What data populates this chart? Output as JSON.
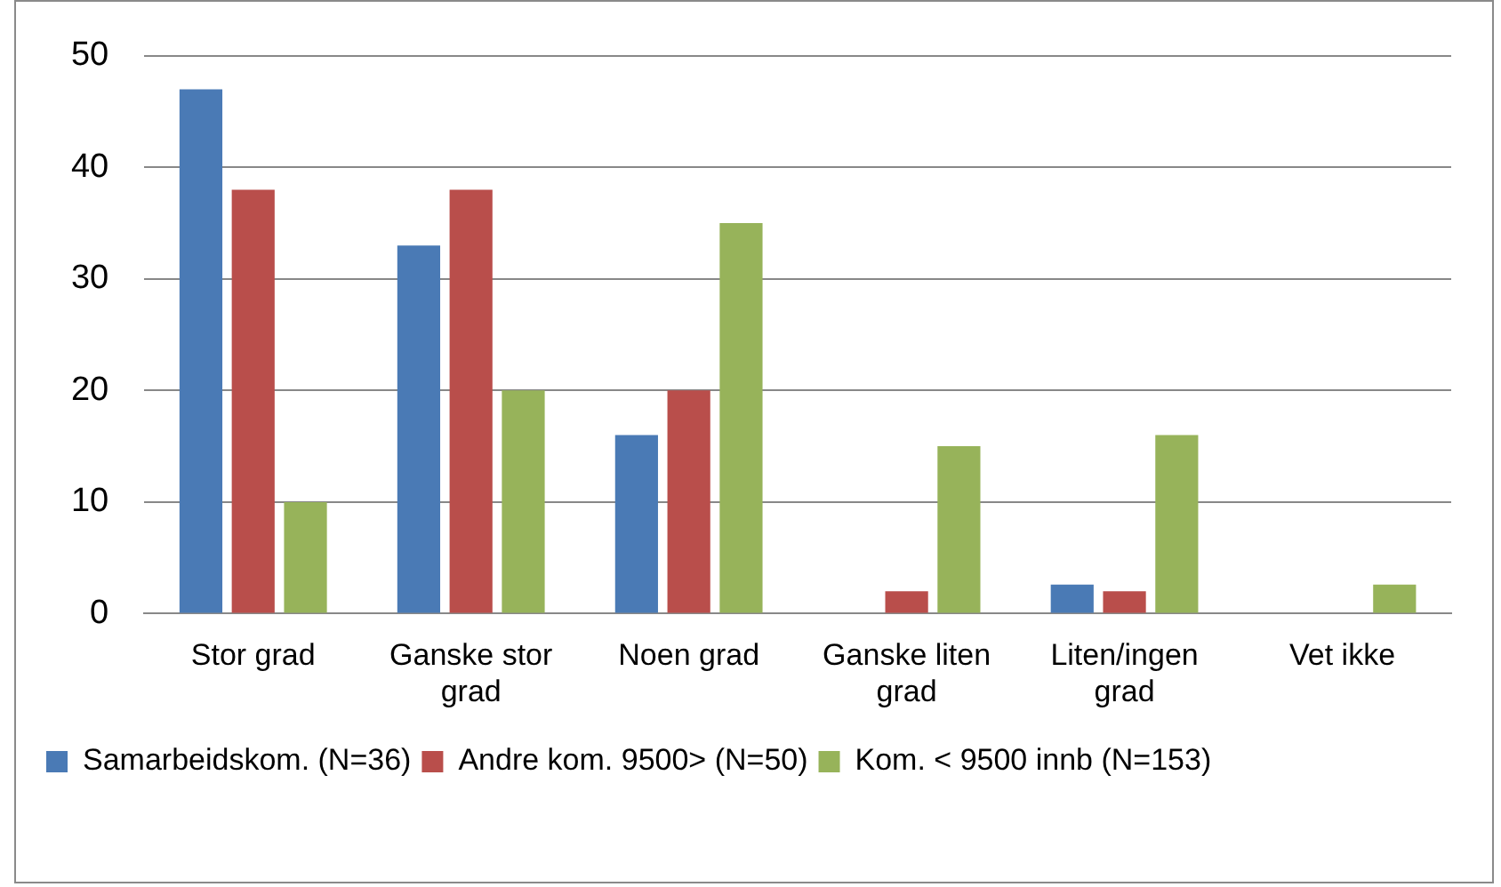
{
  "chart_data": {
    "type": "bar",
    "categories": [
      "Stor grad",
      "Ganske stor grad",
      "Noen grad",
      "Ganske liten grad",
      "Liten/ingen grad",
      "Vet ikke"
    ],
    "series": [
      {
        "name": "Samarbeidskom. (N=36)",
        "color": "#4a7ab5",
        "values": [
          47,
          33,
          16,
          0,
          2.6,
          0
        ]
      },
      {
        "name": "Andre kom. 9500> (N=50)",
        "color": "#b94e4b",
        "values": [
          38,
          38,
          20,
          2,
          2,
          0
        ]
      },
      {
        "name": "Kom. < 9500 innb (N=153)",
        "color": "#97b35a",
        "values": [
          10,
          20,
          35,
          15,
          16,
          2.6
        ]
      }
    ],
    "ylim": [
      0,
      50
    ],
    "yticks": [
      0,
      10,
      20,
      30,
      40,
      50
    ],
    "grid": "y",
    "legend": "bottom"
  }
}
